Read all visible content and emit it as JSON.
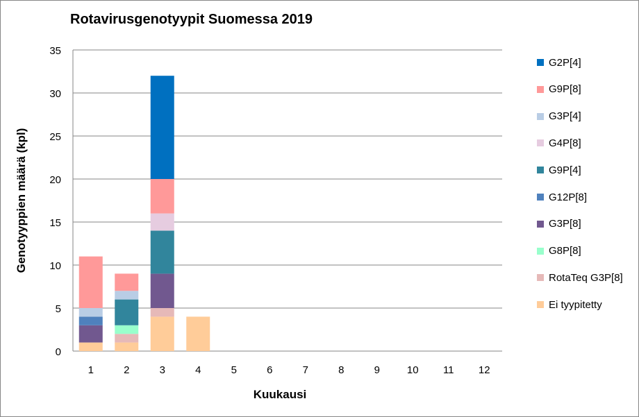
{
  "chart_data": {
    "type": "bar",
    "stacked": true,
    "title": "Rotavirusgenotyypit Suomessa 2019",
    "xlabel": "Kuukausi",
    "ylabel": "Genotyyppien määrä (kpl)",
    "ylim": [
      0,
      35
    ],
    "yticks": [
      "0",
      "5",
      "10",
      "15",
      "20",
      "25",
      "30",
      "35"
    ],
    "grid": true,
    "legend": "right",
    "categories": [
      "1",
      "2",
      "3",
      "4",
      "5",
      "6",
      "7",
      "8",
      "9",
      "10",
      "11",
      "12"
    ],
    "series": [
      {
        "name": "Ei tyypitetty",
        "color": "#FFCC99",
        "values": [
          1,
          1,
          4,
          4,
          0,
          0,
          0,
          0,
          0,
          0,
          0,
          0
        ]
      },
      {
        "name": "RotaTeq G3P[8]",
        "color": "#E6B9B8",
        "values": [
          0,
          1,
          1,
          0,
          0,
          0,
          0,
          0,
          0,
          0,
          0,
          0
        ]
      },
      {
        "name": "G8P[8]",
        "color": "#99FFCC",
        "values": [
          0,
          1,
          0,
          0,
          0,
          0,
          0,
          0,
          0,
          0,
          0,
          0
        ]
      },
      {
        "name": "G3P[8]",
        "color": "#71588F",
        "values": [
          2,
          0,
          4,
          0,
          0,
          0,
          0,
          0,
          0,
          0,
          0,
          0
        ]
      },
      {
        "name": "G12P[8]",
        "color": "#4F81BD",
        "values": [
          1,
          0,
          0,
          0,
          0,
          0,
          0,
          0,
          0,
          0,
          0,
          0
        ]
      },
      {
        "name": "G9P[4]",
        "color": "#31859C",
        "values": [
          0,
          3,
          5,
          0,
          0,
          0,
          0,
          0,
          0,
          0,
          0,
          0
        ]
      },
      {
        "name": "G4P[8]",
        "color": "#E6CCE0",
        "values": [
          0,
          0,
          2,
          0,
          0,
          0,
          0,
          0,
          0,
          0,
          0,
          0
        ]
      },
      {
        "name": "G3P[4]",
        "color": "#B9CDE5",
        "values": [
          1,
          1,
          0,
          0,
          0,
          0,
          0,
          0,
          0,
          0,
          0,
          0
        ]
      },
      {
        "name": "G9P[8]",
        "color": "#FF9999",
        "values": [
          6,
          2,
          4,
          0,
          0,
          0,
          0,
          0,
          0,
          0,
          0,
          0
        ]
      },
      {
        "name": "G2P[4]",
        "color": "#0070C0",
        "values": [
          0,
          0,
          12,
          0,
          0,
          0,
          0,
          0,
          0,
          0,
          0,
          0
        ]
      }
    ],
    "legend_order": [
      "G2P[4]",
      "G9P[8]",
      "G3P[4]",
      "G4P[8]",
      "G9P[4]",
      "G12P[8]",
      "G3P[8]",
      "G8P[8]",
      "RotaTeq G3P[8]",
      "Ei tyypitetty"
    ]
  }
}
